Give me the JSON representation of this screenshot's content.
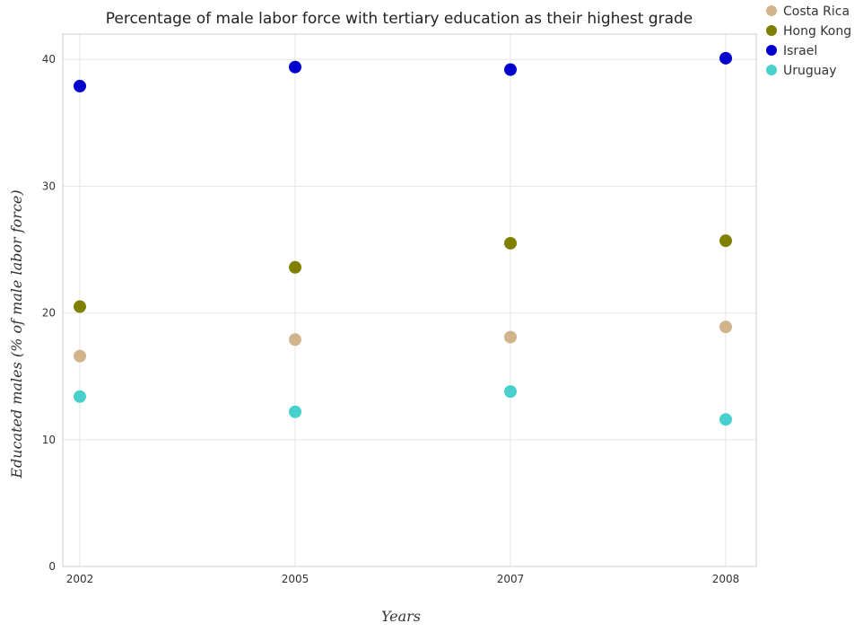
{
  "chart_data": {
    "type": "scatter",
    "title": "Percentage of male labor force with tertiary education as their highest grade",
    "xlabel": "Years",
    "ylabel": "Educated males (% of male labor force)",
    "categories": [
      "2002",
      "2005",
      "2007",
      "2008"
    ],
    "ylim": [
      0,
      42
    ],
    "yticks": [
      0,
      10,
      20,
      30,
      40
    ],
    "grid": true,
    "legend_position": "top-right",
    "series": [
      {
        "name": "Costa Rica",
        "color": "#d2b48c",
        "values": [
          16.6,
          17.9,
          18.1,
          18.9
        ]
      },
      {
        "name": "Hong Kong",
        "color": "#808000",
        "values": [
          20.5,
          23.6,
          25.5,
          25.7
        ]
      },
      {
        "name": "Israel",
        "color": "#0000cd",
        "values": [
          37.9,
          39.4,
          39.2,
          40.1
        ]
      },
      {
        "name": "Uruguay",
        "color": "#48d1cc",
        "values": [
          13.4,
          12.2,
          13.8,
          11.6
        ]
      }
    ]
  }
}
